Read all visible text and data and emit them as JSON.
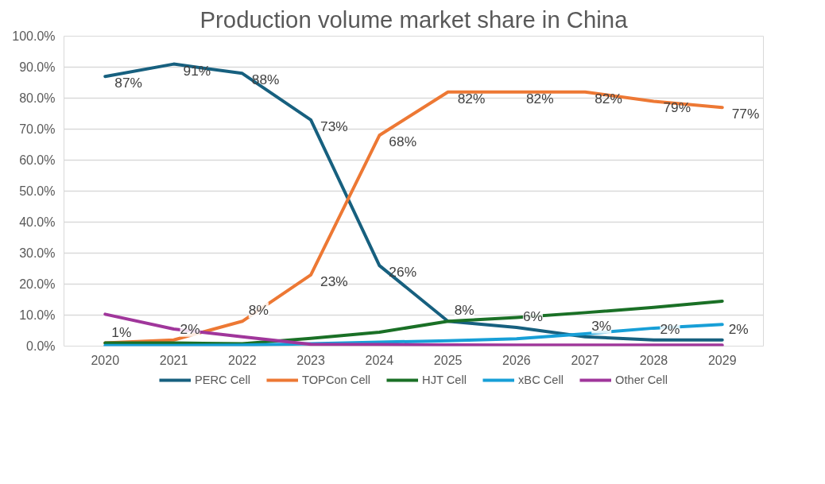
{
  "chart_data": {
    "type": "line",
    "title": "Production volume market share in China",
    "categories": [
      "2020",
      "2021",
      "2022",
      "2023",
      "2024",
      "2025",
      "2026",
      "2027",
      "2028",
      "2029"
    ],
    "series": [
      {
        "name": "PERC Cell",
        "color": "#17607f",
        "values": [
          87,
          91,
          88,
          73,
          26,
          8,
          6,
          3,
          2,
          2
        ],
        "value_labels": [
          "87%",
          "91%",
          "88%",
          "73%",
          "26%",
          "8%",
          "6%",
          "3%",
          "2%",
          "2%"
        ]
      },
      {
        "name": "TOPCon Cell",
        "color": "#ed7834",
        "values": [
          1,
          2,
          8,
          23,
          68,
          82,
          82,
          82,
          79,
          77
        ],
        "value_labels": [
          "1%",
          "2%",
          "8%",
          "23%",
          "68%",
          "82%",
          "82%",
          "82%",
          "79%",
          "77%"
        ]
      },
      {
        "name": "HJT Cell",
        "color": "#1a7026",
        "values": [
          1,
          1,
          0.8,
          2.5,
          4.5,
          8,
          9.2,
          10.8,
          12.5,
          14.5
        ]
      },
      {
        "name": "xBC Cell",
        "color": "#179fd7",
        "values": [
          0.2,
          0.2,
          0.3,
          0.8,
          1.3,
          1.7,
          2.4,
          4,
          5.8,
          7
        ]
      },
      {
        "name": "Other Cell",
        "color": "#a0369b",
        "values": [
          10.3,
          5.5,
          3,
          0.6,
          0.5,
          0.4,
          0.3,
          0.3,
          0.3,
          0.3
        ]
      }
    ],
    "ylim": [
      0,
      100
    ],
    "yticks": [
      {
        "value": 0,
        "label": "0.0%"
      },
      {
        "value": 10,
        "label": "10.0%"
      },
      {
        "value": 20,
        "label": "20.0%"
      },
      {
        "value": 30,
        "label": "30.0%"
      },
      {
        "value": 40,
        "label": "40.0%"
      },
      {
        "value": 50,
        "label": "50.0%"
      },
      {
        "value": 60,
        "label": "60.0%"
      },
      {
        "value": 70,
        "label": "70.0%"
      },
      {
        "value": 80,
        "label": "80.0%"
      },
      {
        "value": 90,
        "label": "90.0%"
      },
      {
        "value": 100,
        "label": "100.0%"
      }
    ],
    "grid": "y",
    "legend": "bottom",
    "marker": "none",
    "line_style": "solid"
  }
}
